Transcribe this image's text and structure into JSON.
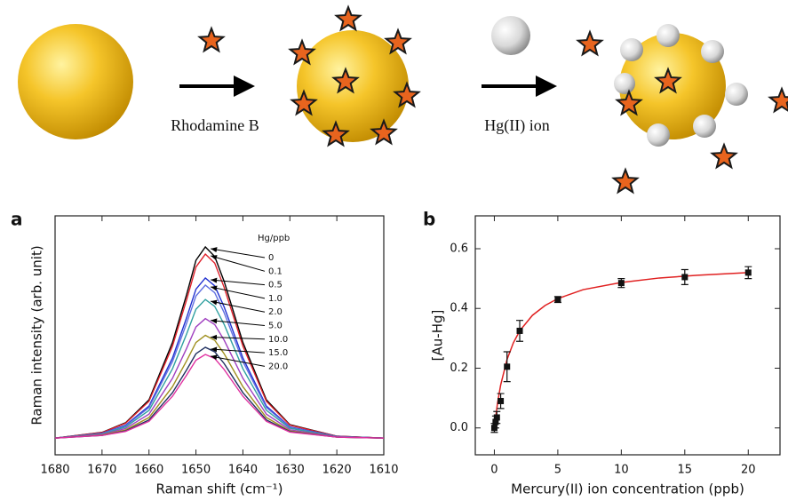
{
  "scheme": {
    "labels": [
      "Rhodamine B",
      "Hg(II) ion"
    ]
  },
  "chart_data": [
    {
      "type": "line",
      "panel": "a",
      "x_label": "Raman shift (cm⁻¹)",
      "y_label": "Raman intensity (arb. unit)",
      "xlim": [
        1680,
        1610
      ],
      "xticks": [
        1680,
        1670,
        1660,
        1650,
        1640,
        1630,
        1620,
        1610
      ],
      "ylim": [
        0,
        100
      ],
      "legend_title": "Hg/ppb",
      "x": [
        1680,
        1670,
        1665,
        1660,
        1655,
        1652,
        1650,
        1648,
        1646,
        1644,
        1640,
        1635,
        1630,
        1620,
        1610
      ],
      "series": [
        {
          "name": "0",
          "color": "#000000",
          "values": [
            7,
            9.4,
            13.4,
            23,
            47,
            67,
            81.4,
            87,
            83,
            72.6,
            47,
            23,
            12.6,
            7.8,
            7
          ]
        },
        {
          "name": "0.1",
          "color": "#e0202a",
          "values": [
            7,
            9.3,
            13.2,
            22.4,
            45.5,
            64.8,
            78.6,
            84,
            80.2,
            70.1,
            45.5,
            22.4,
            12.4,
            7.8,
            7
          ]
        },
        {
          "name": "0.5",
          "color": "#2030d0",
          "values": [
            7,
            9,
            12.4,
            20.4,
            40.5,
            57.3,
            69.3,
            74,
            70.7,
            61.9,
            40.5,
            20.4,
            11.7,
            7.7,
            7
          ]
        },
        {
          "name": "1.0",
          "color": "#6070e0",
          "values": [
            7,
            8.9,
            12.1,
            19.8,
            39,
            55,
            66.5,
            71,
            67.8,
            59.5,
            39,
            19.8,
            11.5,
            7.6,
            7
          ]
        },
        {
          "name": "2.0",
          "color": "#30a0a0",
          "values": [
            7,
            8.7,
            11.6,
            18.6,
            36,
            50.5,
            60.9,
            65,
            62.1,
            54.6,
            36,
            18.6,
            11.1,
            7.6,
            7
          ]
        },
        {
          "name": "5.0",
          "color": "#a040c0",
          "values": [
            7,
            8.5,
            11,
            17,
            32,
            44.5,
            53.5,
            57,
            54.5,
            48,
            32,
            17,
            10.5,
            7.5,
            7
          ]
        },
        {
          "name": "10.0",
          "color": "#a09020",
          "values": [
            7,
            8.3,
            10.4,
            15.6,
            28.5,
            39.3,
            47,
            50,
            47.9,
            42.3,
            28.5,
            15.6,
            10,
            7.4,
            7
          ]
        },
        {
          "name": "15.0",
          "color": "#203060",
          "values": [
            7,
            8.1,
            10,
            14.6,
            26,
            35.5,
            42.3,
            45,
            43.1,
            38.2,
            26,
            14.6,
            9.7,
            7.4,
            7
          ]
        },
        {
          "name": "20.0",
          "color": "#e030a0",
          "values": [
            7,
            8.1,
            9.8,
            14,
            24.5,
            33.3,
            39.6,
            42,
            40.3,
            35.7,
            24.5,
            14,
            9.5,
            7.4,
            7
          ]
        }
      ]
    },
    {
      "type": "scatter",
      "panel": "b",
      "x_label": "Mercury(II) ion concentration (ppb)",
      "y_label": "[Au-Hg]",
      "xlim": [
        -1.5,
        22.5
      ],
      "xticks": [
        0,
        5,
        10,
        15,
        20
      ],
      "ylim": [
        -0.09,
        0.71
      ],
      "yticks": [
        {
          "value": 0,
          "label": "0.0"
        },
        0.2,
        0.4,
        0.6
      ],
      "color": "#111111",
      "x": [
        0,
        0.1,
        0.2,
        0.5,
        1,
        2,
        5,
        10,
        15,
        20
      ],
      "values": [
        0,
        0.02,
        0.035,
        0.09,
        0.205,
        0.325,
        0.43,
        0.485,
        0.505,
        0.52
      ],
      "errors": [
        0.015,
        0.02,
        0.02,
        0.025,
        0.05,
        0.035,
        0.01,
        0.015,
        0.025,
        0.02
      ],
      "fit_color": "#e02020",
      "fit_x": [
        0,
        0.25,
        0.5,
        1,
        1.5,
        2,
        3,
        4,
        5,
        7,
        10,
        13,
        16,
        20
      ],
      "fit_values": [
        0,
        0.083,
        0.144,
        0.229,
        0.285,
        0.325,
        0.377,
        0.41,
        0.433,
        0.463,
        0.487,
        0.502,
        0.511,
        0.52
      ]
    }
  ]
}
